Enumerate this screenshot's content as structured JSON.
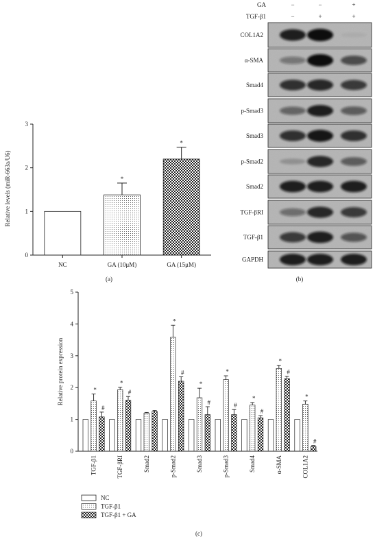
{
  "chart_data": [
    {
      "type": "bar",
      "panel_label": "(a)",
      "categories": [
        "NC",
        "GA (10μM)",
        "GA (15μM)"
      ],
      "values": [
        1.0,
        1.38,
        2.2
      ],
      "errors": [
        0,
        0.27,
        0.27
      ],
      "significance": [
        "",
        "*",
        "*"
      ],
      "ylabel": "Relative levels (miR-663a/U6)",
      "ylim": [
        0,
        3
      ],
      "yticks": [
        "0",
        "1",
        "2",
        "3"
      ],
      "fills": [
        "white",
        "dots",
        "checker"
      ]
    },
    {
      "type": "table",
      "panel_label": "(b)",
      "condition_rows": [
        {
          "name": "GA",
          "signs": [
            "−",
            "−",
            "+"
          ]
        },
        {
          "name": "TGF-β1",
          "signs": [
            "−",
            "+",
            "+"
          ]
        }
      ],
      "bands": [
        {
          "label": "COL1A2",
          "intensity": [
            0.9,
            1.0,
            0.05
          ]
        },
        {
          "label": "α-SMA",
          "intensity": [
            0.4,
            1.0,
            0.65
          ]
        },
        {
          "label": "Smad4",
          "intensity": [
            0.8,
            0.85,
            0.75
          ]
        },
        {
          "label": "p-Smad3",
          "intensity": [
            0.5,
            0.9,
            0.55
          ]
        },
        {
          "label": "Smad3",
          "intensity": [
            0.8,
            0.95,
            0.8
          ]
        },
        {
          "label": "p-Smad2",
          "intensity": [
            0.2,
            0.85,
            0.55
          ]
        },
        {
          "label": "Smad2",
          "intensity": [
            0.9,
            0.9,
            0.9
          ]
        },
        {
          "label": "TGF-βRI",
          "intensity": [
            0.45,
            0.85,
            0.75
          ]
        },
        {
          "label": "TGF-β1",
          "intensity": [
            0.75,
            0.9,
            0.6
          ]
        },
        {
          "label": "GAPDH",
          "intensity": [
            0.9,
            0.9,
            0.9
          ]
        }
      ]
    },
    {
      "type": "bar",
      "panel_label": "(c)",
      "categories": [
        "TGF-β1",
        "TGF-βRI",
        "Smad2",
        "p-Smad2",
        "Smad3",
        "p-Smad3",
        "Smad4",
        "α-SMA",
        "COL1A2"
      ],
      "series": [
        {
          "name": "NC",
          "values": [
            1,
            1,
            1,
            1,
            1,
            1,
            1,
            1,
            1
          ],
          "errors": [
            0,
            0,
            0,
            0,
            0,
            0,
            0,
            0,
            0
          ],
          "marks": [
            "",
            "",
            "",
            "",
            "",
            "",
            "",
            "",
            ""
          ]
        },
        {
          "name": "TGF-β1",
          "values": [
            1.58,
            1.93,
            1.2,
            3.58,
            1.68,
            2.25,
            1.45,
            2.6,
            1.48
          ],
          "errors": [
            0.22,
            0.08,
            0.02,
            0.38,
            0.3,
            0.12,
            0.08,
            0.1,
            0.1
          ],
          "marks": [
            "*",
            "*",
            "",
            "*",
            "*",
            "*",
            "*",
            "*",
            "*"
          ]
        },
        {
          "name": "TGF-β1 + GA",
          "values": [
            1.08,
            1.6,
            1.25,
            2.2,
            1.15,
            1.15,
            1.05,
            2.28,
            0.15
          ],
          "errors": [
            0.15,
            0.12,
            0.03,
            0.14,
            0.25,
            0.16,
            0.07,
            0.08,
            0.03
          ],
          "marks": [
            "#",
            "#",
            "",
            "#",
            "#",
            "#",
            "#",
            "#",
            "#"
          ]
        }
      ],
      "ylabel": "Relative protein expression",
      "ylim": [
        0,
        5
      ],
      "yticks": [
        "0",
        "1",
        "2",
        "3",
        "4",
        "5"
      ],
      "legend_position": "bottom-left"
    }
  ],
  "colors": {
    "ink": "#222222",
    "bar_fill": "#ffffff",
    "blot_bg": "#b4b4b4"
  }
}
